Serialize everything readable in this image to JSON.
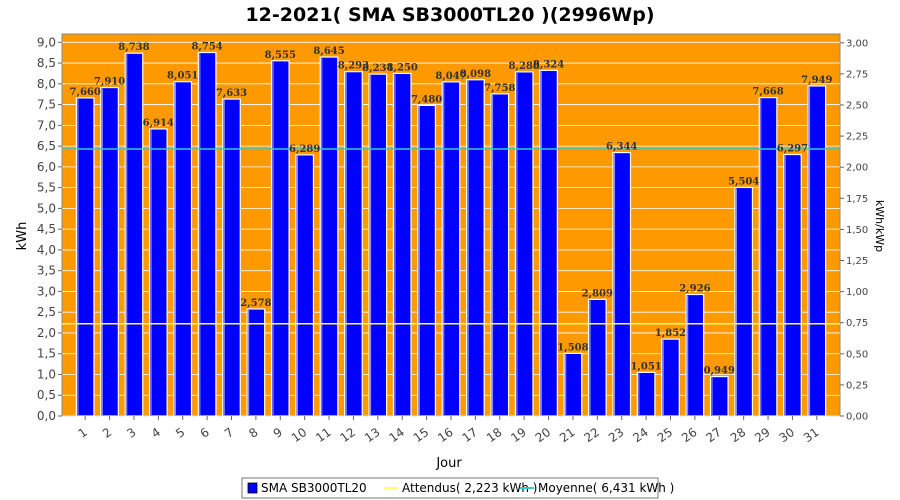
{
  "chart_data": {
    "type": "bar",
    "title": "12-2021( SMA SB3000TL20 )(2996Wp)",
    "xlabel": "Jour",
    "ylabel": "kWh",
    "y2label": "kWh/kWp",
    "ylim": [
      0,
      9.2
    ],
    "yticks": [
      "0,0",
      "0,5",
      "1,0",
      "1,5",
      "2,0",
      "2,5",
      "3,0",
      "3,5",
      "4,0",
      "4,5",
      "5,0",
      "5,5",
      "6,0",
      "6,5",
      "7,0",
      "7,5",
      "8,0",
      "8,5",
      "9,0"
    ],
    "y2ticks": [
      "0,00",
      "0,25",
      "0,50",
      "0,75",
      "1,00",
      "1,25",
      "1,50",
      "1,75",
      "2,00",
      "2,25",
      "2,50",
      "2,75",
      "3,00"
    ],
    "categories": [
      "1",
      "2",
      "3",
      "4",
      "5",
      "6",
      "7",
      "8",
      "9",
      "10",
      "11",
      "12",
      "13",
      "14",
      "15",
      "16",
      "17",
      "18",
      "19",
      "20",
      "21",
      "22",
      "23",
      "24",
      "25",
      "26",
      "27",
      "28",
      "29",
      "30",
      "31"
    ],
    "series": [
      {
        "name": "SMA SB3000TL20",
        "color": "#0000ff",
        "values": [
          7.66,
          7.91,
          8.738,
          6.914,
          8.051,
          8.754,
          7.633,
          2.578,
          8.555,
          6.289,
          8.645,
          8.293,
          8.234,
          8.25,
          7.48,
          8.047,
          8.098,
          7.758,
          8.288,
          8.324,
          1.508,
          2.809,
          6.344,
          1.051,
          1.852,
          2.926,
          0.949,
          5.504,
          7.668,
          6.297,
          7.949
        ],
        "labels": [
          "7,660",
          "7,910",
          "8,738",
          "6,914",
          "8,051",
          "8,754",
          "7,633",
          "2,578",
          "8,555",
          "6,289",
          "8,645",
          "8,293",
          "8,234",
          "8,250",
          "7,480",
          "8,047",
          "8,098",
          "7,758",
          "8,288",
          "8,324",
          "1,508",
          "2,809",
          "6,344",
          "1,051",
          "1,852",
          "2,926",
          "0,949",
          "5,504",
          "7,668",
          "6,297",
          "7,949"
        ]
      }
    ],
    "reference_lines": [
      {
        "name": "Attendus",
        "value": 2.223,
        "color": "#ffff66",
        "legend": "Attendus( 2,223 kWh )"
      },
      {
        "name": "Moyenne",
        "value": 6.431,
        "color": "#33cccc",
        "legend": "Moyenne( 6,431 kWh )"
      }
    ],
    "colors": {
      "plot_background": "#ff9900",
      "grid": "#ffffff"
    },
    "grid": true,
    "legend_position": "bottom-center"
  }
}
